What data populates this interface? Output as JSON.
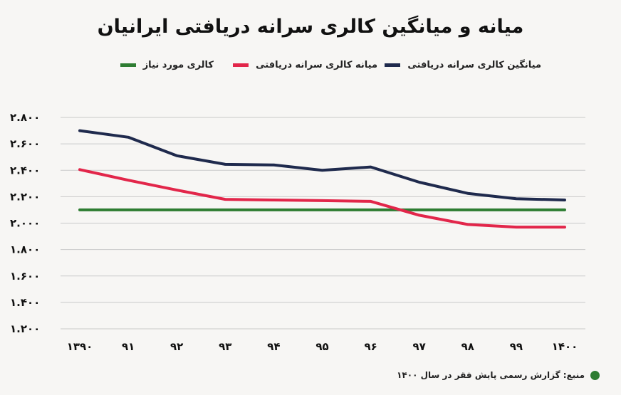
{
  "colors": {
    "average": "#1f2a4d",
    "median": "#e2264a",
    "required": "#2e7d32",
    "grid": "#c9c9c9"
  },
  "chart_data": {
    "type": "line",
    "title": "میانه و میانگین کالری سرانه دریافتی ایرانیان",
    "categories": [
      "۱۳۹۰",
      "۹۱",
      "۹۲",
      "۹۳",
      "۹۴",
      "۹۵",
      "۹۶",
      "۹۷",
      "۹۸",
      "۹۹",
      "۱۴۰۰"
    ],
    "y_tick_labels": [
      "۲.۸۰۰",
      "۲.۶۰۰",
      "۲.۴۰۰",
      "۲.۲۰۰",
      "۲.۰۰۰",
      "۱.۸۰۰",
      "۱.۶۰۰",
      "۱.۴۰۰",
      "۱.۲۰۰"
    ],
    "y_ticks": [
      2800,
      2600,
      2400,
      2200,
      2000,
      1800,
      1600,
      1400,
      1200
    ],
    "ylim": [
      1200,
      2800
    ],
    "grid": true,
    "legend_position": "top",
    "series": [
      {
        "name": "میانگین کالری سرانه دریافتی",
        "color_key": "average",
        "values": [
          2700,
          2650,
          2510,
          2445,
          2440,
          2400,
          2425,
          2310,
          2225,
          2185,
          2175
        ]
      },
      {
        "name": "میانه کالری سرانه دریافتی",
        "color_key": "median",
        "values": [
          2405,
          2325,
          2250,
          2180,
          2175,
          2170,
          2165,
          2060,
          1990,
          1970,
          1970
        ]
      },
      {
        "name": "کالری مورد نیاز",
        "color_key": "required",
        "values": [
          2100,
          2100,
          2100,
          2100,
          2100,
          2100,
          2100,
          2100,
          2100,
          2100,
          2100
        ]
      }
    ]
  },
  "source_text": "منبع: گزارش رسمی پایش فقر در سال ۱۴۰۰"
}
